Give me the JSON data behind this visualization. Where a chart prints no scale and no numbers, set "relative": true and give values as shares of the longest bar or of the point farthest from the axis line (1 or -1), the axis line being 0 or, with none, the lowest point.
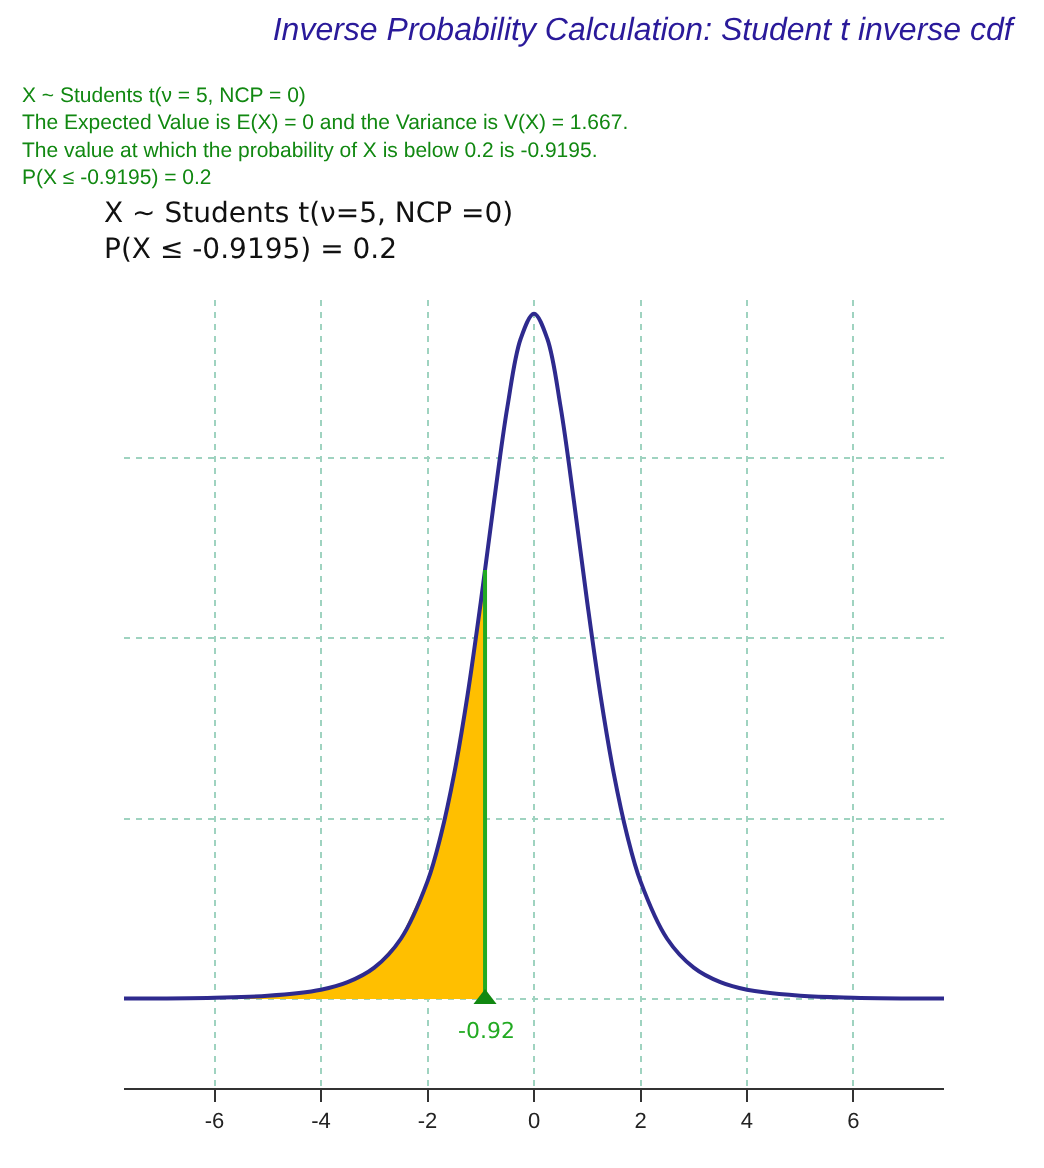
{
  "chart_data": {
    "type": "line",
    "relative": true,
    "title": "Inverse Probability Calculation: Student t inverse cdf",
    "subtitle": "X ~ Students t(ν = 5, NCP = 0)\nThe Expected Value is E(X) = 0 and the Variance is V(X) = 1.667.\nThe value at which the probability of X is below 0.2 is -0.9195.\nP(X ≤ -0.9195) = 0.2",
    "annotations": [
      "X ~ Students t(ν=5, NCP =0)\nP(X ≤ -0.9195) = 0.2",
      {
        "text": "-0.92",
        "x": -0.92,
        "y": 0
      }
    ],
    "xlim": [
      -7.7,
      7.7
    ],
    "xticks": [
      -6,
      -4,
      -2,
      0,
      2,
      4,
      6
    ],
    "grid": true,
    "series": [
      {
        "type": "area",
        "color": "#ffbf00",
        "x": [
          -7.7,
          -6,
          -5,
          -4,
          -3.5,
          -3,
          -2.5,
          -2,
          -1.75,
          -1.5,
          -1.25,
          -1,
          -0.9195
        ],
        "values": [
          0.00047,
          0.0018,
          0.0046,
          0.0135,
          0.0244,
          0.0456,
          0.0878,
          0.1715,
          0.2385,
          0.328,
          0.4423,
          0.5787,
          0.6258
        ]
      },
      {
        "type": "line",
        "color": "#2e2a8e",
        "x": [
          -7.7,
          -6,
          -5,
          -4,
          -3.5,
          -3,
          -2.5,
          -2,
          -1.75,
          -1.5,
          -1.25,
          -1,
          -0.75,
          -0.5,
          -0.25,
          0,
          0.25,
          0.5,
          0.75,
          1,
          1.25,
          1.5,
          1.75,
          2,
          2.5,
          3,
          3.5,
          4,
          5,
          6,
          7.7
        ],
        "values": [
          0.00047,
          0.0018,
          0.0046,
          0.0135,
          0.0244,
          0.0456,
          0.0878,
          0.1715,
          0.2385,
          0.328,
          0.4423,
          0.5787,
          0.7263,
          0.8638,
          0.9634,
          1,
          0.9634,
          0.8638,
          0.7263,
          0.5787,
          0.4423,
          0.328,
          0.2385,
          0.1715,
          0.0878,
          0.0456,
          0.0244,
          0.0135,
          0.0046,
          0.0018,
          0.00047
        ]
      },
      {
        "type": "line",
        "color": "#22aa22",
        "x": [
          -0.9195,
          -0.9195
        ],
        "values": [
          0,
          0.6258
        ]
      },
      {
        "type": "scatter",
        "marker": "triangle",
        "color": "#118811",
        "x": [
          -0.9195
        ],
        "values": [
          0
        ]
      }
    ]
  }
}
